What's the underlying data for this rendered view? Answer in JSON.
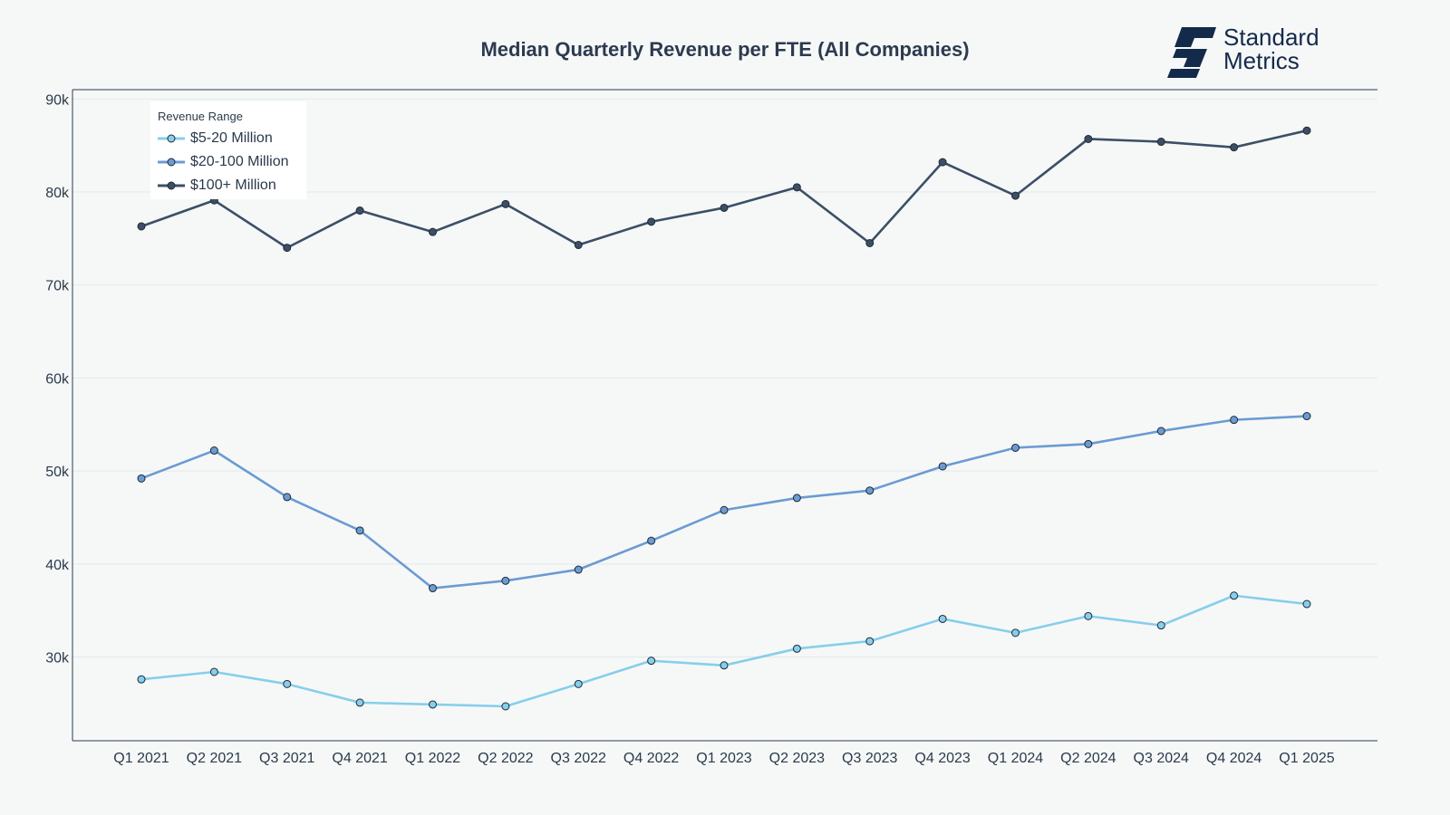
{
  "chart_data": {
    "type": "line",
    "title": "Median Quarterly Revenue per FTE (All Companies)",
    "xlabel": "",
    "ylabel": "",
    "categories": [
      "Q1 2021",
      "Q2 2021",
      "Q3 2021",
      "Q4 2021",
      "Q1 2022",
      "Q2 2022",
      "Q3 2022",
      "Q4 2022",
      "Q1 2023",
      "Q2 2023",
      "Q3 2023",
      "Q4 2023",
      "Q1 2024",
      "Q2 2024",
      "Q3 2024",
      "Q4 2024",
      "Q1 2025"
    ],
    "ylim": [
      21000,
      91000
    ],
    "yticks": [
      30000,
      40000,
      50000,
      60000,
      70000,
      80000,
      90000
    ],
    "ytick_labels": [
      "30k",
      "40k",
      "50k",
      "60k",
      "70k",
      "80k",
      "90k"
    ],
    "grid": true,
    "legend": {
      "title": "Revenue Range",
      "placement": "top-left"
    },
    "series": [
      {
        "name": "$5-20 Million",
        "color": "#87ceeb",
        "values": [
          27600,
          28400,
          27100,
          25100,
          24900,
          24700,
          27100,
          29600,
          29100,
          30900,
          31700,
          34100,
          32600,
          34400,
          33400,
          36600,
          35700
        ]
      },
      {
        "name": "$20-100 Million",
        "color": "#6b9bd2",
        "values": [
          49200,
          52200,
          47200,
          43600,
          37400,
          38200,
          39400,
          42500,
          45800,
          47100,
          47900,
          50500,
          52500,
          52900,
          54300,
          55500,
          55900
        ]
      },
      {
        "name": "$100+ Million",
        "color": "#3c4f66",
        "values": [
          76300,
          79100,
          74000,
          78000,
          75700,
          78700,
          74300,
          76800,
          78300,
          80500,
          74500,
          83200,
          79600,
          85700,
          85400,
          84800,
          86600
        ]
      }
    ]
  },
  "brand": {
    "line1": "Standard",
    "line2": "Metrics",
    "mark_color": "#132a4a"
  }
}
